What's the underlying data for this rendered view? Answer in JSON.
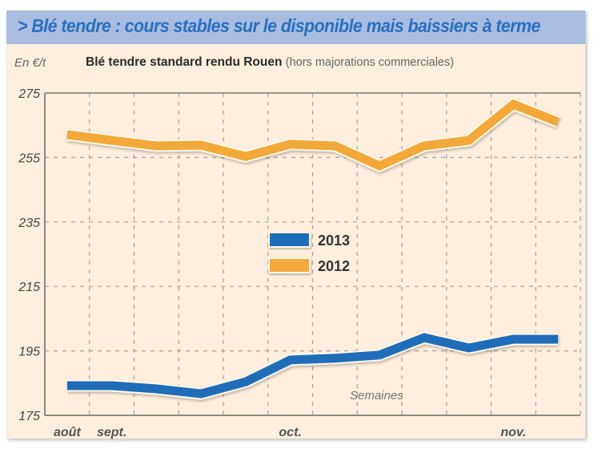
{
  "header": {
    "title": "> Blé tendre : cours stables sur le disponible mais baissiers à terme"
  },
  "subtitle": {
    "unit": "En €/t",
    "main": "Blé tendre standard rendu Rouen",
    "note": "(hors majorations commerciales)"
  },
  "chart_data": {
    "type": "line",
    "title": "Blé tendre standard rendu Rouen (hors majorations commerciales)",
    "ylabel": "En €/t",
    "xlabel": "Semaines",
    "ylim": [
      175,
      275
    ],
    "yticks": [
      175,
      195,
      215,
      235,
      255,
      275
    ],
    "grid": true,
    "legend_position": "center",
    "x": [
      1,
      2,
      3,
      4,
      5,
      6,
      7,
      8,
      9,
      10,
      11,
      12
    ],
    "x_month_labels": [
      {
        "label": "août",
        "at": 1
      },
      {
        "label": "sept.",
        "at": 2
      },
      {
        "label": "oct.",
        "at": 6
      },
      {
        "label": "nov.",
        "at": 11
      }
    ],
    "series": [
      {
        "name": "2013",
        "color": "#1f6db8",
        "values": [
          184.2,
          184.2,
          183.2,
          181.7,
          185.4,
          192.2,
          192.7,
          193.7,
          199.1,
          195.9,
          198.6,
          198.6
        ]
      },
      {
        "name": "2012",
        "color": "#f3a93a",
        "values": [
          262.1,
          260.3,
          258.6,
          258.8,
          255.3,
          259.1,
          258.6,
          252.4,
          258.6,
          260.3,
          271.5,
          266.0
        ]
      }
    ]
  }
}
